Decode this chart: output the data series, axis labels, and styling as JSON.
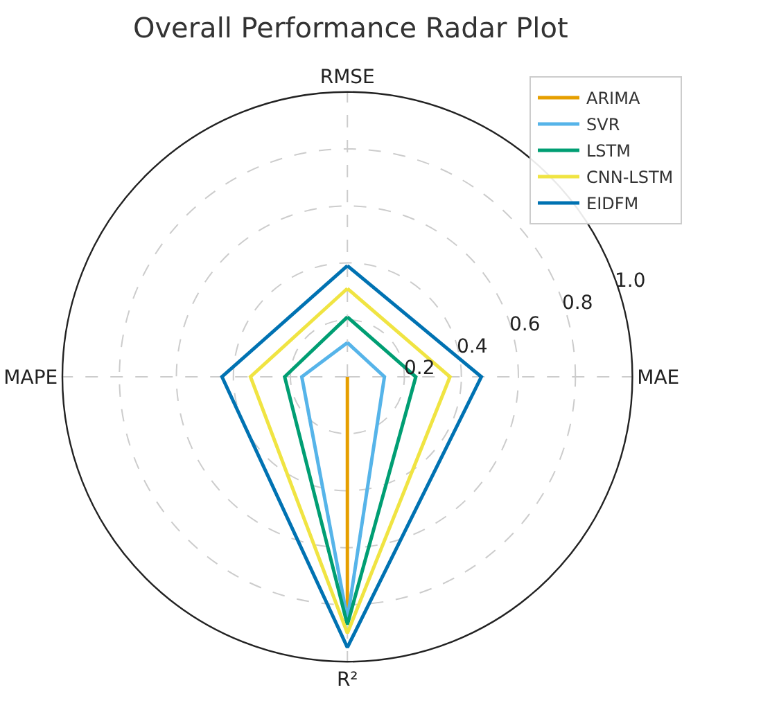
{
  "chart_data": {
    "type": "radar",
    "title": "Overall Performance Radar Plot",
    "categories": [
      "RMSE",
      "MAE",
      "R²",
      "MAPE"
    ],
    "series": [
      {
        "name": "ARIMA",
        "color": "#e69f00",
        "values": [
          0,
          0,
          0.87,
          0
        ]
      },
      {
        "name": "SVR",
        "color": "#56b4e9",
        "values": [
          0.12,
          0.13,
          0.85,
          0.16
        ]
      },
      {
        "name": "LSTM",
        "color": "#009e73",
        "values": [
          0.21,
          0.24,
          0.87,
          0.22
        ]
      },
      {
        "name": "CNN-LSTM",
        "color": "#f0e442",
        "values": [
          0.31,
          0.36,
          0.9,
          0.34
        ]
      },
      {
        "name": "EIDFM",
        "color": "#0072b2",
        "values": [
          0.39,
          0.47,
          0.95,
          0.44
        ]
      }
    ],
    "ylim": [
      0,
      1
    ],
    "yticks": [
      0.2,
      0.4,
      0.6,
      0.8,
      {
        "value": 1.0,
        "label": "1.0"
      }
    ],
    "grid": true,
    "legend": "top right",
    "marker": "none",
    "line_style": "solid"
  }
}
